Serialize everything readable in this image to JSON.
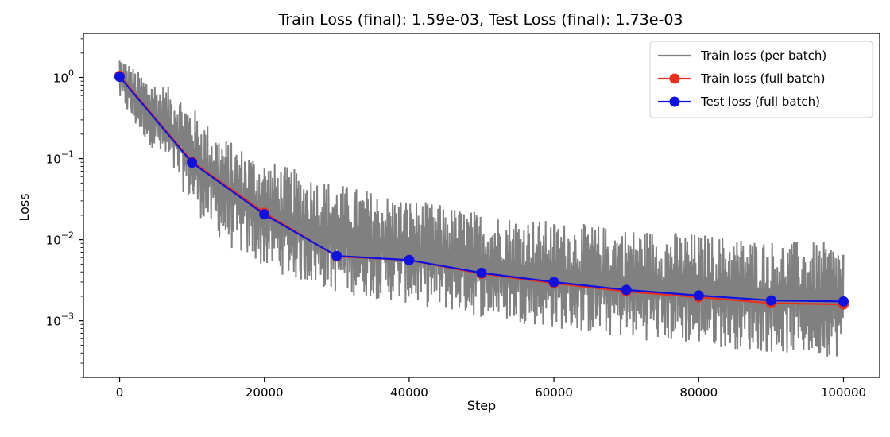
{
  "chart_data": {
    "type": "line",
    "title": "Train Loss (final): 1.59e-03, Test Loss (final): 1.73e-03",
    "xlabel": "Step",
    "ylabel": "Loss",
    "xlim": [
      -5000,
      105000
    ],
    "ylim": [
      0.0002,
      3.5
    ],
    "yscale": "log",
    "x_ticks": [
      0,
      20000,
      40000,
      60000,
      80000,
      100000
    ],
    "x_tick_labels": [
      "0",
      "20000",
      "40000",
      "60000",
      "80000",
      "100000"
    ],
    "y_ticks": [
      1,
      0.1,
      0.01,
      0.001
    ],
    "y_tick_bases": [
      "10",
      "10",
      "10",
      "10"
    ],
    "y_tick_exponents": [
      "0",
      "−1",
      "−2",
      "−3"
    ],
    "grid": false,
    "legend_position": "top-right",
    "series": [
      {
        "name": "Train loss (per batch)",
        "color": "#808080",
        "style": "noisy-band",
        "x": [
          0,
          2000,
          5000,
          8000,
          10000,
          12000,
          15000,
          20000,
          25000,
          30000,
          40000,
          50000,
          60000,
          70000,
          80000,
          90000,
          100000
        ],
        "upper": [
          2.0,
          1.3,
          0.9,
          0.7,
          0.45,
          0.28,
          0.17,
          0.1,
          0.07,
          0.05,
          0.032,
          0.022,
          0.017,
          0.014,
          0.012,
          0.01,
          0.009
        ],
        "lower": [
          0.5,
          0.25,
          0.12,
          0.05,
          0.025,
          0.015,
          0.008,
          0.0045,
          0.003,
          0.0022,
          0.0016,
          0.0011,
          0.0008,
          0.0006,
          0.0005,
          0.0004,
          0.00035
        ]
      },
      {
        "name": "Train loss (full batch)",
        "color": "#e8301c",
        "x": [
          0,
          10000,
          20000,
          30000,
          40000,
          50000,
          60000,
          70000,
          80000,
          90000,
          100000
        ],
        "y": [
          1.05,
          0.092,
          0.0215,
          0.0062,
          0.0056,
          0.0038,
          0.0029,
          0.0023,
          0.00195,
          0.00165,
          0.00159
        ]
      },
      {
        "name": "Test loss (full batch)",
        "color": "#1010e0",
        "x": [
          0,
          10000,
          20000,
          30000,
          40000,
          50000,
          60000,
          70000,
          80000,
          90000,
          100000
        ],
        "y": [
          1.02,
          0.089,
          0.0205,
          0.0063,
          0.0056,
          0.0039,
          0.003,
          0.0024,
          0.00205,
          0.00178,
          0.00173
        ]
      }
    ]
  }
}
